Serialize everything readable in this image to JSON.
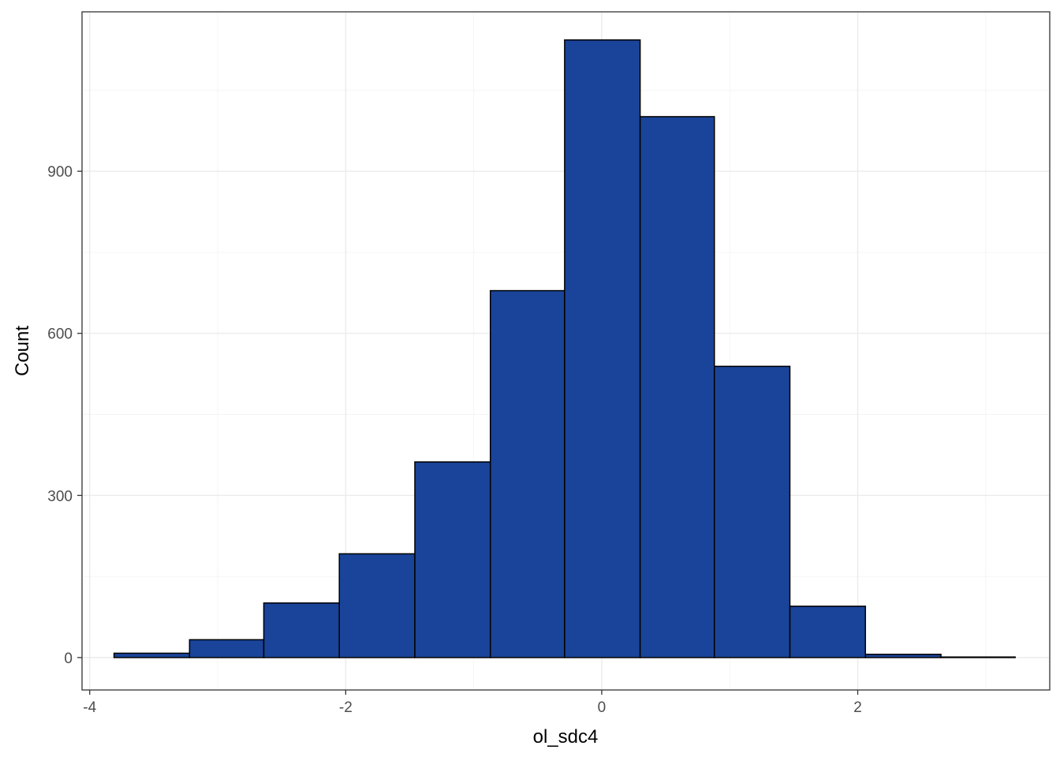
{
  "chart_data": {
    "type": "bar",
    "title": "",
    "xlabel": "ol_sdc4",
    "ylabel": "Count",
    "xlim": [
      -4.06,
      3.5
    ],
    "ylim": [
      -60,
      1195
    ],
    "grid": true,
    "colors": {
      "bar_fill": "#1a4499",
      "bar_stroke": "#000000",
      "grid_major": "#ebebeb",
      "grid_minor": "#f5f5f5",
      "panel_border": "#333333",
      "tick_label": "#4d4d4d"
    },
    "x_ticks": [
      -4,
      -2,
      0,
      2
    ],
    "x_tick_labels": [
      "-4",
      "-2",
      "0",
      "2"
    ],
    "y_ticks": [
      0,
      300,
      600,
      900
    ],
    "y_tick_labels": [
      "0",
      "300",
      "600",
      "900"
    ],
    "bins": [
      {
        "x0": -3.81,
        "x1": -3.22,
        "count": 8
      },
      {
        "x0": -3.22,
        "x1": -2.64,
        "count": 33
      },
      {
        "x0": -2.64,
        "x1": -2.05,
        "count": 101
      },
      {
        "x0": -2.05,
        "x1": -1.46,
        "count": 192
      },
      {
        "x0": -1.46,
        "x1": -0.87,
        "count": 362
      },
      {
        "x0": -0.87,
        "x1": -0.29,
        "count": 679
      },
      {
        "x0": -0.29,
        "x1": 0.3,
        "count": 1143
      },
      {
        "x0": 0.3,
        "x1": 0.88,
        "count": 1001
      },
      {
        "x0": 0.88,
        "x1": 1.47,
        "count": 539
      },
      {
        "x0": 1.47,
        "x1": 2.06,
        "count": 95
      },
      {
        "x0": 2.06,
        "x1": 2.65,
        "count": 6
      },
      {
        "x0": 2.65,
        "x1": 3.23,
        "count": 1
      }
    ]
  }
}
